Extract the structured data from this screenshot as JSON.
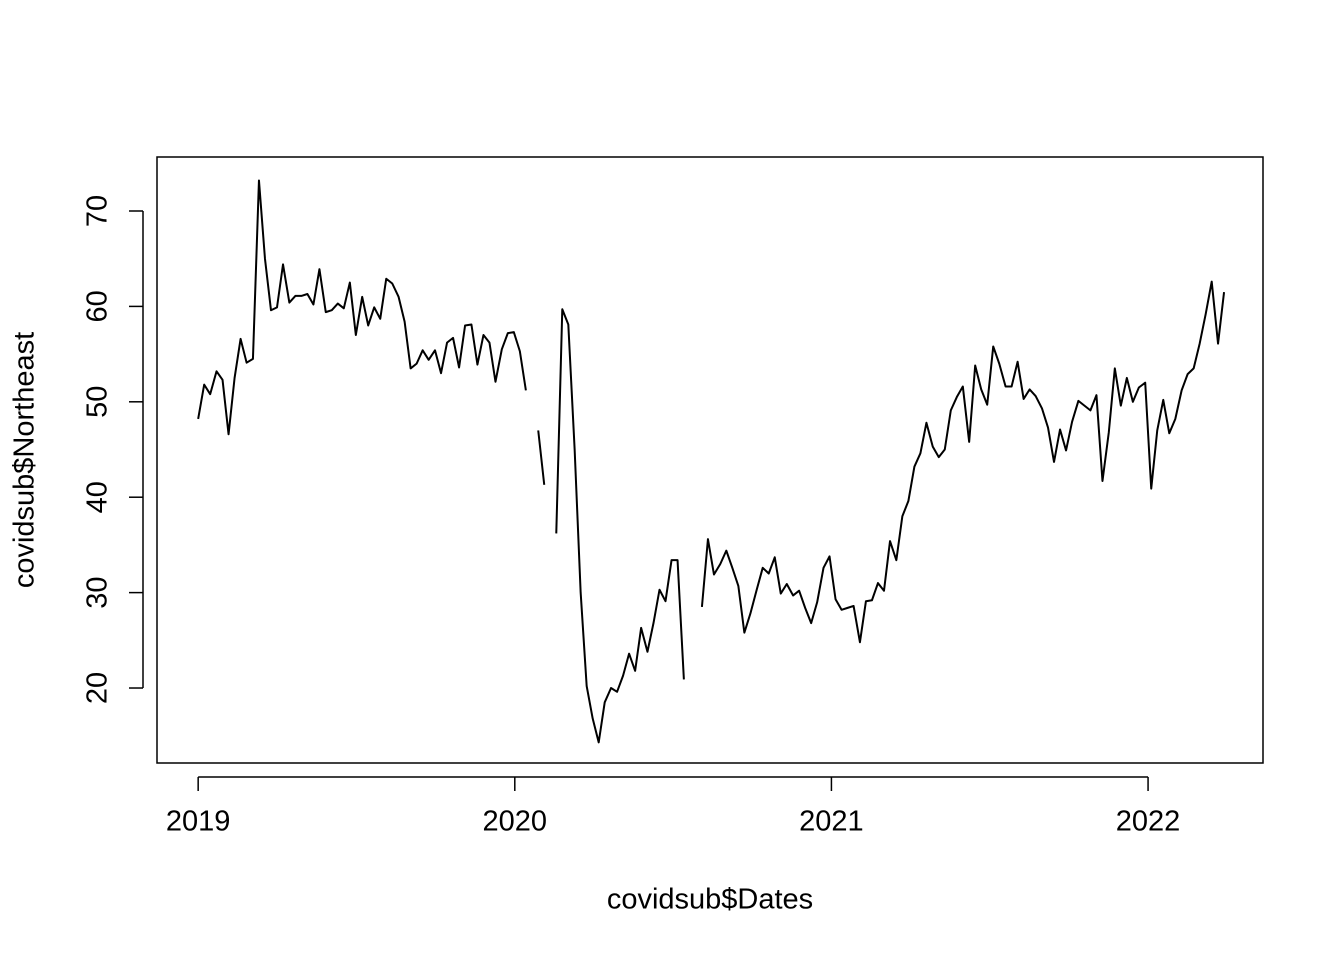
{
  "chart_data": {
    "type": "line",
    "x_label": "covidsub$Dates",
    "y_label": "covidsub$Northeast",
    "xlim": [
      2018.87,
      2022.363
    ],
    "ylim": [
      12.14,
      75.66
    ],
    "xticks": [
      2019,
      2020,
      2021,
      2022
    ],
    "yticks": [
      20,
      30,
      40,
      50,
      60,
      70
    ],
    "grid": false,
    "color": "#000000",
    "x": [
      2019.0,
      2019.019,
      2019.038,
      2019.058,
      2019.077,
      2019.096,
      2019.115,
      2019.134,
      2019.153,
      2019.173,
      2019.192,
      2019.211,
      2019.23,
      2019.249,
      2019.268,
      2019.288,
      2019.307,
      2019.326,
      2019.345,
      2019.364,
      2019.383,
      2019.403,
      2019.422,
      2019.441,
      2019.46,
      2019.479,
      2019.498,
      2019.518,
      2019.537,
      2019.556,
      2019.575,
      2019.594,
      2019.613,
      2019.633,
      2019.652,
      2019.671,
      2019.69,
      2019.709,
      2019.728,
      2019.748,
      2019.767,
      2019.786,
      2019.805,
      2019.824,
      2019.843,
      2019.863,
      2019.882,
      2019.901,
      2019.92,
      2019.939,
      2019.959,
      2019.978,
      2019.997,
      2020.016,
      2020.035,
      2020.054,
      2020.074,
      2020.093,
      2020.112,
      2020.131,
      2020.15,
      2020.169,
      2020.189,
      2020.208,
      2020.227,
      2020.246,
      2020.265,
      2020.284,
      2020.304,
      2020.323,
      2020.342,
      2020.361,
      2020.38,
      2020.399,
      2020.419,
      2020.438,
      2020.457,
      2020.476,
      2020.495,
      2020.514,
      2020.534,
      2020.553,
      2020.572,
      2020.591,
      2020.61,
      2020.629,
      2020.649,
      2020.668,
      2020.687,
      2020.706,
      2020.725,
      2020.744,
      2020.764,
      2020.783,
      2020.802,
      2020.821,
      2020.84,
      2020.859,
      2020.879,
      2020.898,
      2020.917,
      2020.936,
      2020.955,
      2020.975,
      2020.994,
      2021.013,
      2021.032,
      2021.051,
      2021.07,
      2021.09,
      2021.109,
      2021.128,
      2021.147,
      2021.166,
      2021.185,
      2021.205,
      2021.224,
      2021.243,
      2021.262,
      2021.281,
      2021.3,
      2021.32,
      2021.339,
      2021.358,
      2021.377,
      2021.396,
      2021.415,
      2021.435,
      2021.454,
      2021.473,
      2021.492,
      2021.511,
      2021.53,
      2021.55,
      2021.569,
      2021.588,
      2021.607,
      2021.626,
      2021.645,
      2021.665,
      2021.684,
      2021.703,
      2021.722,
      2021.741,
      2021.76,
      2021.78,
      2021.799,
      2021.818,
      2021.837,
      2021.856,
      2021.876,
      2021.895,
      2021.914,
      2021.933,
      2021.952,
      2021.971,
      2021.991,
      2022.01,
      2022.029,
      2022.048,
      2022.067,
      2022.086,
      2022.106,
      2022.125,
      2022.144,
      2022.163,
      2022.182,
      2022.201,
      2022.221,
      2022.24
    ],
    "values": [
      48.2,
      51.8,
      50.8,
      53.2,
      52.3,
      46.6,
      52.5,
      56.6,
      54.1,
      54.5,
      73.2,
      65,
      59.6,
      59.9,
      64.4,
      60.4,
      61.1,
      61.1,
      61.3,
      60.2,
      63.9,
      59.4,
      59.6,
      60.3,
      59.8,
      62.5,
      57,
      61,
      58,
      59.9,
      58.7,
      62.9,
      62.4,
      61,
      58.4,
      53.5,
      54,
      55.4,
      54.4,
      55.4,
      53,
      56.2,
      56.7,
      53.6,
      58,
      58.1,
      53.9,
      57,
      56.2,
      52.1,
      55.5,
      57.2,
      57.3,
      55.3,
      51.2,
      null,
      47,
      41.3,
      null,
      36.2,
      59.7,
      58.1,
      45,
      30,
      20.2,
      16.8,
      14.3,
      18.5,
      20,
      19.6,
      21.3,
      23.6,
      21.8,
      26.3,
      23.8,
      26.8,
      30.3,
      29.1,
      33.4,
      33.4,
      20.9,
      null,
      null,
      28.5,
      35.6,
      31.9,
      33,
      34.4,
      32.6,
      30.7,
      25.8,
      27.8,
      30.3,
      32.6,
      32,
      33.7,
      29.9,
      30.9,
      29.7,
      30.2,
      28.4,
      26.8,
      29,
      32.6,
      33.8,
      29.3,
      28.2,
      28.4,
      28.6,
      24.8,
      29.1,
      29.2,
      31,
      30.2,
      35.4,
      33.4,
      38,
      39.6,
      43.2,
      44.6,
      47.8,
      45.3,
      44.2,
      45,
      49.1,
      50.5,
      51.6,
      45.8,
      53.8,
      51.3,
      49.7,
      55.8,
      54,
      51.6,
      51.6,
      54.2,
      50.3,
      51.3,
      50.6,
      49.3,
      47.3,
      43.7,
      47.1,
      44.9,
      47.9,
      50.1,
      49.6,
      49.1,
      50.7,
      41.7,
      46.8,
      53.5,
      49.6,
      52.5,
      50,
      51.5,
      52,
      40.9,
      47,
      50.2,
      46.7,
      48.2,
      51.2,
      52.9,
      53.5,
      56.1,
      59.2,
      62.6,
      56.1,
      61.5
    ]
  }
}
